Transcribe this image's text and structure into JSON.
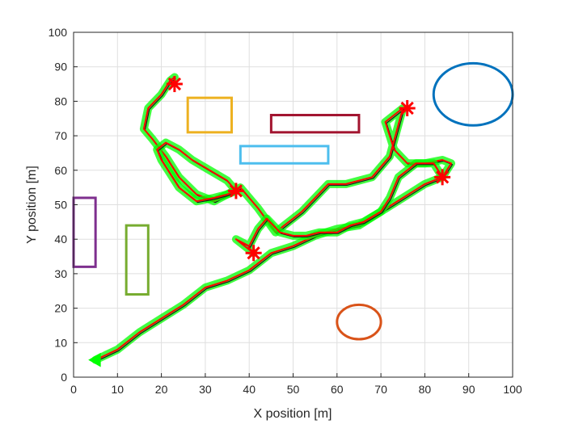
{
  "chart_data": {
    "type": "line",
    "title": "",
    "xlabel": "X position [m]",
    "ylabel": "Y position [m]",
    "xlim": [
      0,
      100
    ],
    "ylim": [
      0,
      100
    ],
    "xticks": [
      "0",
      "10",
      "20",
      "30",
      "40",
      "50",
      "60",
      "70",
      "80",
      "90",
      "100"
    ],
    "yticks": [
      "0",
      "10",
      "20",
      "30",
      "40",
      "50",
      "60",
      "70",
      "80",
      "90",
      "100"
    ],
    "grid": true,
    "legend": "none",
    "obstacles": [
      {
        "shape": "rect",
        "x": [
          26,
          36
        ],
        "y": [
          71,
          81
        ],
        "color": "#EDB120"
      },
      {
        "shape": "rect",
        "x": [
          45,
          65
        ],
        "y": [
          71,
          76
        ],
        "color": "#A2142F"
      },
      {
        "shape": "rect",
        "x": [
          38,
          58
        ],
        "y": [
          62,
          67
        ],
        "color": "#4DBEEE"
      },
      {
        "shape": "rect",
        "x": [
          0,
          5
        ],
        "y": [
          32,
          52
        ],
        "color": "#7E2F8E"
      },
      {
        "shape": "rect",
        "x": [
          12,
          17
        ],
        "y": [
          24,
          44
        ],
        "color": "#77AC30"
      },
      {
        "shape": "ellipse",
        "cx": 91,
        "cy": 82,
        "rx": 9,
        "ry": 9,
        "color": "#0072BD"
      },
      {
        "shape": "ellipse",
        "cx": 65,
        "cy": 16,
        "rx": 5,
        "ry": 5,
        "color": "#D95319"
      }
    ],
    "waypoints": {
      "x": [
        23,
        76,
        37,
        41,
        84
      ],
      "y": [
        85,
        78,
        54,
        36,
        58
      ],
      "color": "#FF0000",
      "marker": "asterisk"
    },
    "start_marker": {
      "x": 5,
      "y": 5,
      "color": "#00FF00",
      "marker": "triangle"
    },
    "series": [
      {
        "color": "#FF0000",
        "x": [
          5,
          10,
          15,
          20,
          25,
          30,
          35,
          40,
          42,
          45,
          50,
          55,
          60,
          65,
          70,
          75,
          80,
          84,
          86,
          84,
          80,
          76,
          73,
          71,
          75,
          72,
          68,
          62,
          58,
          55,
          52,
          50,
          48,
          46,
          42,
          38,
          35,
          32,
          28,
          24,
          21,
          18,
          16,
          17,
          20,
          22,
          23
        ],
        "y": [
          5,
          8,
          13,
          17,
          21,
          26,
          28,
          31,
          33,
          36,
          38,
          41,
          43,
          44,
          48,
          52,
          56,
          58,
          62,
          63,
          62,
          62,
          66,
          74,
          78,
          64,
          58,
          56,
          56,
          52,
          48,
          46,
          44,
          42,
          49,
          55,
          53,
          51,
          53,
          58,
          64,
          69,
          72,
          78,
          82,
          86,
          87
        ]
      },
      {
        "color": "#FF0000",
        "x": [
          41,
          38,
          37,
          40,
          42,
          44,
          47,
          50,
          53,
          56,
          60,
          63,
          66,
          70,
          72,
          74,
          78,
          82,
          84
        ],
        "y": [
          36,
          39,
          40,
          38,
          43,
          46,
          42,
          41,
          41,
          42,
          42,
          44,
          45,
          48,
          52,
          58,
          62,
          62,
          58
        ]
      },
      {
        "color": "#FF0000",
        "x": [
          37,
          35,
          32,
          28,
          24,
          22,
          20,
          19,
          21,
          24,
          27,
          31,
          35,
          37
        ],
        "y": [
          54,
          53,
          52,
          51,
          55,
          59,
          63,
          66,
          68,
          66,
          63,
          60,
          57,
          54
        ]
      }
    ]
  }
}
